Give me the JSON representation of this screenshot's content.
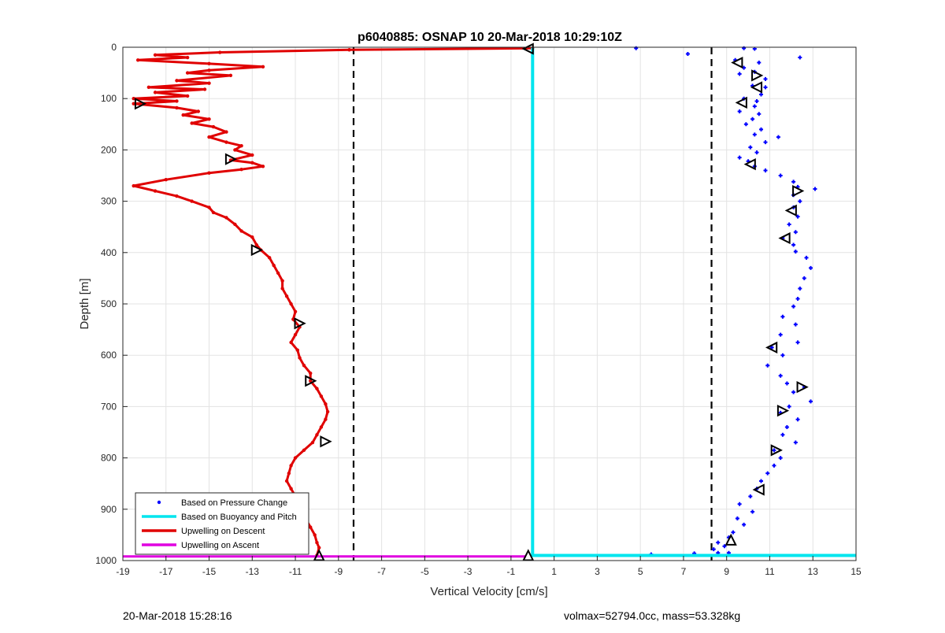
{
  "chart_data": {
    "type": "scatter",
    "title": "p6040885: OSNAP 10 20-Mar-2018 10:29:10Z",
    "xlabel": "Vertical Velocity [cm/s]",
    "ylabel": "Depth [m]",
    "xlim": [
      -19,
      15
    ],
    "ylim": [
      0,
      1000
    ],
    "y_reversed": true,
    "grid": true,
    "x_ticks": [
      -19,
      -17,
      -15,
      -13,
      -11,
      -9,
      -7,
      -5,
      -3,
      -1,
      1,
      3,
      5,
      7,
      9,
      11,
      13,
      15
    ],
    "y_ticks": [
      0,
      100,
      200,
      300,
      400,
      500,
      600,
      700,
      800,
      900,
      1000
    ],
    "legend_position": "bottom-left",
    "legend": [
      {
        "label": "Based on Pressure Change",
        "color": "#0000ff",
        "style": "dot"
      },
      {
        "label": "Based on Buoyancy and Pitch",
        "color": "#00e5ee",
        "style": "line"
      },
      {
        "label": "Upwelling on Descent",
        "color": "#e00000",
        "style": "line"
      },
      {
        "label": "Upwelling on Ascent",
        "color": "#e000e0",
        "style": "line"
      }
    ],
    "dashed_lines_x": [
      -8.3,
      8.3
    ],
    "series": [
      {
        "name": "Upwelling on Descent",
        "color": "#e00000",
        "type": "line",
        "points": [
          [
            0,
            2
          ],
          [
            -8.5,
            5
          ],
          [
            -14.5,
            10
          ],
          [
            -17.5,
            15
          ],
          [
            -16,
            20
          ],
          [
            -18.3,
            25
          ],
          [
            -15,
            32
          ],
          [
            -12.5,
            38
          ],
          [
            -15,
            45
          ],
          [
            -16,
            50
          ],
          [
            -14,
            55
          ],
          [
            -16.5,
            65
          ],
          [
            -15,
            70
          ],
          [
            -17.8,
            78
          ],
          [
            -15.2,
            82
          ],
          [
            -17.5,
            88
          ],
          [
            -16,
            95
          ],
          [
            -18.5,
            100
          ],
          [
            -16.5,
            105
          ],
          [
            -18.5,
            110
          ],
          [
            -16.5,
            118
          ],
          [
            -15.5,
            125
          ],
          [
            -16.2,
            132
          ],
          [
            -15,
            140
          ],
          [
            -15.8,
            148
          ],
          [
            -14.8,
            155
          ],
          [
            -14.2,
            165
          ],
          [
            -15,
            175
          ],
          [
            -14.2,
            185
          ],
          [
            -13.5,
            192
          ],
          [
            -13.8,
            200
          ],
          [
            -13,
            210
          ],
          [
            -14,
            220
          ],
          [
            -13,
            225
          ],
          [
            -12.5,
            232
          ],
          [
            -13.5,
            238
          ],
          [
            -15,
            245
          ],
          [
            -17,
            258
          ],
          [
            -18.5,
            270
          ],
          [
            -17.5,
            280
          ],
          [
            -16.5,
            290
          ],
          [
            -15.8,
            300
          ],
          [
            -15,
            312
          ],
          [
            -14.8,
            322
          ],
          [
            -14.2,
            332
          ],
          [
            -13.8,
            345
          ],
          [
            -13.5,
            358
          ],
          [
            -13,
            370
          ],
          [
            -12.8,
            385
          ],
          [
            -12.6,
            395
          ],
          [
            -12.2,
            410
          ],
          [
            -12,
            425
          ],
          [
            -11.8,
            440
          ],
          [
            -11.6,
            455
          ],
          [
            -11.6,
            470
          ],
          [
            -11.4,
            485
          ],
          [
            -11.2,
            500
          ],
          [
            -11,
            515
          ],
          [
            -11.1,
            530
          ],
          [
            -10.8,
            545
          ],
          [
            -11,
            560
          ],
          [
            -11.2,
            575
          ],
          [
            -10.9,
            590
          ],
          [
            -10.8,
            605
          ],
          [
            -10.6,
            620
          ],
          [
            -10.3,
            635
          ],
          [
            -10.3,
            650
          ],
          [
            -10,
            665
          ],
          [
            -9.8,
            680
          ],
          [
            -9.6,
            695
          ],
          [
            -9.5,
            710
          ],
          [
            -9.6,
            725
          ],
          [
            -9.8,
            740
          ],
          [
            -10,
            755
          ],
          [
            -10.2,
            770
          ],
          [
            -10.6,
            785
          ],
          [
            -11,
            800
          ],
          [
            -11.2,
            815
          ],
          [
            -11.3,
            830
          ],
          [
            -11.4,
            845
          ],
          [
            -11.2,
            860
          ],
          [
            -11,
            875
          ],
          [
            -10.8,
            890
          ],
          [
            -10.6,
            905
          ],
          [
            -10.5,
            920
          ],
          [
            -10.3,
            935
          ],
          [
            -10.1,
            950
          ],
          [
            -10,
            965
          ],
          [
            -9.9,
            975
          ],
          [
            -10,
            990
          ]
        ]
      },
      {
        "name": "Upwelling on Ascent",
        "color": "#e000e0",
        "type": "line",
        "points": [
          [
            -19,
            992
          ],
          [
            -0.3,
            992
          ]
        ]
      },
      {
        "name": "Based on Buoyancy and Pitch",
        "color": "#00e5ee",
        "type": "line",
        "points": [
          [
            0,
            1
          ],
          [
            0,
            990
          ],
          [
            15,
            990
          ]
        ]
      },
      {
        "name": "Based on Pressure Change",
        "color": "#0000ff",
        "type": "scatter",
        "points": [
          [
            9.8,
            2
          ],
          [
            10.3,
            3
          ],
          [
            12.4,
            20
          ],
          [
            9.4,
            25
          ],
          [
            10.5,
            30
          ],
          [
            9.8,
            40
          ],
          [
            10.3,
            48
          ],
          [
            9.6,
            52
          ],
          [
            10.8,
            62
          ],
          [
            10.2,
            75
          ],
          [
            10.8,
            78
          ],
          [
            10.6,
            92
          ],
          [
            9.8,
            100
          ],
          [
            10.4,
            105
          ],
          [
            10.3,
            115
          ],
          [
            9.6,
            125
          ],
          [
            10.5,
            130
          ],
          [
            10.2,
            140
          ],
          [
            9.9,
            150
          ],
          [
            10.6,
            160
          ],
          [
            10.3,
            170
          ],
          [
            11.4,
            175
          ],
          [
            10.8,
            185
          ],
          [
            10.1,
            195
          ],
          [
            10.4,
            205
          ],
          [
            9.6,
            215
          ],
          [
            10,
            222
          ],
          [
            10.3,
            232
          ],
          [
            10.8,
            240
          ],
          [
            11.5,
            250
          ],
          [
            12.1,
            262
          ],
          [
            12.3,
            272
          ],
          [
            13.1,
            276
          ],
          [
            12.1,
            288
          ],
          [
            12.4,
            300
          ],
          [
            12.1,
            312
          ],
          [
            12.3,
            330
          ],
          [
            11.9,
            345
          ],
          [
            12.2,
            360
          ],
          [
            11.6,
            372
          ],
          [
            12.1,
            385
          ],
          [
            12.2,
            398
          ],
          [
            12.7,
            410
          ],
          [
            12.9,
            430
          ],
          [
            12.6,
            450
          ],
          [
            12.4,
            470
          ],
          [
            12.3,
            490
          ],
          [
            12.1,
            505
          ],
          [
            11.6,
            525
          ],
          [
            12.2,
            540
          ],
          [
            11.5,
            560
          ],
          [
            12.3,
            575
          ],
          [
            11.1,
            585
          ],
          [
            11.6,
            600
          ],
          [
            10.9,
            620
          ],
          [
            11.5,
            640
          ],
          [
            11.8,
            655
          ],
          [
            12.6,
            662
          ],
          [
            12.1,
            672
          ],
          [
            12.9,
            690
          ],
          [
            11.9,
            700
          ],
          [
            11.5,
            712
          ],
          [
            12.3,
            725
          ],
          [
            11.8,
            740
          ],
          [
            11.6,
            755
          ],
          [
            12.2,
            770
          ],
          [
            11.2,
            785
          ],
          [
            11.5,
            800
          ],
          [
            11.2,
            815
          ],
          [
            10.9,
            830
          ],
          [
            10.6,
            845
          ],
          [
            10.4,
            860
          ],
          [
            10.1,
            875
          ],
          [
            9.6,
            890
          ],
          [
            10.2,
            905
          ],
          [
            9.5,
            918
          ],
          [
            9.8,
            930
          ],
          [
            9.3,
            945
          ],
          [
            9.1,
            955
          ],
          [
            8.6,
            965
          ],
          [
            8.9,
            972
          ],
          [
            8.4,
            978
          ],
          [
            8.6,
            985
          ],
          [
            4.8,
            2
          ],
          [
            7.2,
            13
          ],
          [
            9.1,
            985
          ],
          [
            5.5,
            988
          ],
          [
            7.5,
            986
          ]
        ]
      }
    ],
    "markers": [
      {
        "x": -0.2,
        "y": 3,
        "shape": "left"
      },
      {
        "x": -18.2,
        "y": 110,
        "shape": "right"
      },
      {
        "x": -14,
        "y": 218,
        "shape": "right"
      },
      {
        "x": -12.8,
        "y": 395,
        "shape": "right"
      },
      {
        "x": -10.8,
        "y": 538,
        "shape": "right"
      },
      {
        "x": -10.3,
        "y": 650,
        "shape": "right"
      },
      {
        "x": -9.6,
        "y": 768,
        "shape": "right"
      },
      {
        "x": -9.9,
        "y": 990,
        "shape": "up"
      },
      {
        "x": -0.2,
        "y": 990,
        "shape": "up"
      },
      {
        "x": 9.5,
        "y": 30,
        "shape": "left"
      },
      {
        "x": 10.4,
        "y": 55,
        "shape": "right"
      },
      {
        "x": 10.4,
        "y": 78,
        "shape": "left"
      },
      {
        "x": 9.7,
        "y": 108,
        "shape": "left"
      },
      {
        "x": 10.1,
        "y": 228,
        "shape": "left"
      },
      {
        "x": 12.3,
        "y": 280,
        "shape": "right"
      },
      {
        "x": 12,
        "y": 318,
        "shape": "left"
      },
      {
        "x": 11.7,
        "y": 372,
        "shape": "left"
      },
      {
        "x": 11.1,
        "y": 585,
        "shape": "left"
      },
      {
        "x": 12.5,
        "y": 662,
        "shape": "right"
      },
      {
        "x": 11.6,
        "y": 708,
        "shape": "right"
      },
      {
        "x": 11.3,
        "y": 785,
        "shape": "right"
      },
      {
        "x": 10.5,
        "y": 862,
        "shape": "left"
      },
      {
        "x": 9.2,
        "y": 960,
        "shape": "up"
      }
    ]
  },
  "footer": {
    "left": "20-Mar-2018 15:28:16",
    "right": "volmax=52794.0cc, mass=53.328kg"
  }
}
